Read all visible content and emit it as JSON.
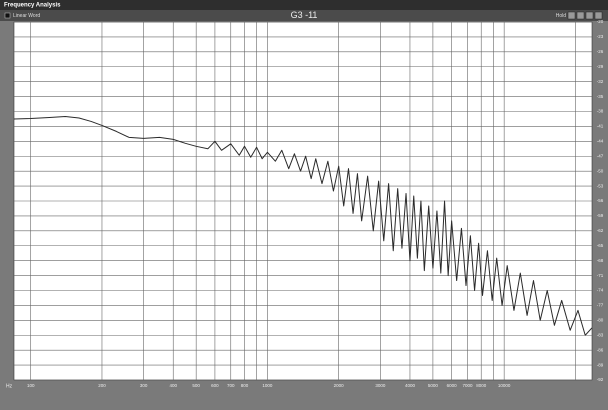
{
  "window": {
    "title": "Frequency Analysis",
    "checkbox_label": "Linear Word",
    "hold_label": "Hold"
  },
  "chart_data": {
    "type": "line",
    "title": "G3 -11",
    "x_label": "Hz",
    "log_x": true,
    "grid": true,
    "color": "#2a2a2a",
    "xlim": [
      85,
      23500
    ],
    "xticks": [
      100,
      200,
      300,
      400,
      500,
      600,
      700,
      800,
      1000,
      2000,
      3000,
      4000,
      5000,
      6000,
      7000,
      8000,
      10000
    ],
    "x_minor_ticks": [
      900,
      9000,
      20000
    ],
    "ylim": [
      -92,
      -20
    ],
    "yticks": [
      -20,
      -23,
      -26,
      -29,
      -32,
      -35,
      -38,
      -41,
      -44,
      -47,
      -50,
      -53,
      -56,
      -59,
      -62,
      -65,
      -68,
      -71,
      -74,
      -77,
      -80,
      -83,
      -86,
      -89,
      -92
    ],
    "x": [
      85,
      100,
      120,
      140,
      160,
      180,
      200,
      230,
      260,
      300,
      350,
      400,
      450,
      500,
      560,
      600,
      640,
      700,
      760,
      800,
      850,
      900,
      950,
      1000,
      1080,
      1150,
      1230,
      1300,
      1380,
      1450,
      1530,
      1600,
      1700,
      1800,
      1900,
      2000,
      2100,
      2200,
      2300,
      2400,
      2500,
      2650,
      2800,
      2950,
      3100,
      3250,
      3400,
      3550,
      3700,
      3850,
      4000,
      4150,
      4300,
      4450,
      4600,
      4800,
      5000,
      5200,
      5400,
      5600,
      5800,
      6000,
      6300,
      6600,
      6900,
      7200,
      7500,
      7800,
      8100,
      8500,
      8900,
      9300,
      9800,
      10300,
      11000,
      11700,
      12500,
      13300,
      14200,
      15200,
      16300,
      17500,
      19000,
      20500,
      22000,
      23500
    ],
    "values": [
      -39.5,
      -39.4,
      -39.2,
      -39.0,
      -39.3,
      -40.0,
      -40.8,
      -42.0,
      -43.2,
      -43.4,
      -43.2,
      -43.6,
      -44.4,
      -45.0,
      -45.5,
      -44.0,
      -45.8,
      -44.5,
      -46.8,
      -45.0,
      -47.2,
      -45.2,
      -47.5,
      -46.2,
      -48.0,
      -45.8,
      -49.5,
      -46.5,
      -50.0,
      -47.0,
      -51.5,
      -47.5,
      -52.5,
      -48.0,
      -54.0,
      -49.0,
      -57.0,
      -49.5,
      -58.5,
      -50.5,
      -60.0,
      -51.0,
      -62.0,
      -52.0,
      -64.0,
      -52.5,
      -66.0,
      -53.5,
      -65.5,
      -54.5,
      -68.0,
      -55.0,
      -67.5,
      -56.0,
      -70.0,
      -57.0,
      -69.5,
      -58.0,
      -70.5,
      -56.0,
      -71.0,
      -60.0,
      -72.0,
      -61.5,
      -73.0,
      -63.0,
      -74.0,
      -64.5,
      -75.0,
      -66.0,
      -76.0,
      -67.5,
      -77.0,
      -69.0,
      -78.0,
      -70.5,
      -79.0,
      -72.0,
      -80.0,
      -74.0,
      -81.0,
      -76.0,
      -82.0,
      -78.0,
      -83.0,
      -81.5
    ]
  }
}
